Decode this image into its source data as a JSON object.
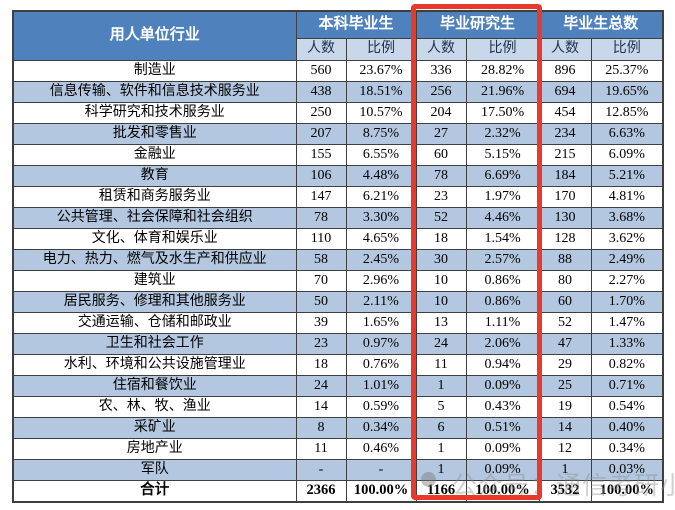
{
  "table": {
    "industry_header": "用人单位行业",
    "groups": [
      {
        "label": "本科毕业生"
      },
      {
        "label": "毕业研究生"
      },
      {
        "label": "毕业生总数"
      }
    ],
    "sub_headers": {
      "num": "人数",
      "pct": "比例"
    },
    "rows": [
      [
        "制造业",
        "560",
        "23.67%",
        "336",
        "28.82%",
        "896",
        "25.37%"
      ],
      [
        "信息传输、软件和信息技术服务业",
        "438",
        "18.51%",
        "256",
        "21.96%",
        "694",
        "19.65%"
      ],
      [
        "科学研究和技术服务业",
        "250",
        "10.57%",
        "204",
        "17.50%",
        "454",
        "12.85%"
      ],
      [
        "批发和零售业",
        "207",
        "8.75%",
        "27",
        "2.32%",
        "234",
        "6.63%"
      ],
      [
        "金融业",
        "155",
        "6.55%",
        "60",
        "5.15%",
        "215",
        "6.09%"
      ],
      [
        "教育",
        "106",
        "4.48%",
        "78",
        "6.69%",
        "184",
        "5.21%"
      ],
      [
        "租赁和商务服务业",
        "147",
        "6.21%",
        "23",
        "1.97%",
        "170",
        "4.81%"
      ],
      [
        "公共管理、社会保障和社会组织",
        "78",
        "3.30%",
        "52",
        "4.46%",
        "130",
        "3.68%"
      ],
      [
        "文化、体育和娱乐业",
        "110",
        "4.65%",
        "18",
        "1.54%",
        "128",
        "3.62%"
      ],
      [
        "电力、热力、燃气及水生产和供应业",
        "58",
        "2.45%",
        "30",
        "2.57%",
        "88",
        "2.49%"
      ],
      [
        "建筑业",
        "70",
        "2.96%",
        "10",
        "0.86%",
        "80",
        "2.27%"
      ],
      [
        "居民服务、修理和其他服务业",
        "50",
        "2.11%",
        "10",
        "0.86%",
        "60",
        "1.70%"
      ],
      [
        "交通运输、仓储和邮政业",
        "39",
        "1.65%",
        "13",
        "1.11%",
        "52",
        "1.47%"
      ],
      [
        "卫生和社会工作",
        "23",
        "0.97%",
        "24",
        "2.06%",
        "47",
        "1.33%"
      ],
      [
        "水利、环境和公共设施管理业",
        "18",
        "0.76%",
        "11",
        "0.94%",
        "29",
        "0.82%"
      ],
      [
        "住宿和餐饮业",
        "24",
        "1.01%",
        "1",
        "0.09%",
        "25",
        "0.71%"
      ],
      [
        "农、林、牧、渔业",
        "14",
        "0.59%",
        "5",
        "0.43%",
        "19",
        "0.54%"
      ],
      [
        "采矿业",
        "8",
        "0.34%",
        "6",
        "0.51%",
        "14",
        "0.40%"
      ],
      [
        "房地产业",
        "11",
        "0.46%",
        "1",
        "0.09%",
        "12",
        "0.34%"
      ],
      [
        "军队",
        "-",
        "-",
        "1",
        "0.09%",
        "1",
        "0.03%"
      ]
    ],
    "total_row": [
      "合计",
      "2366",
      "100.00%",
      "1166",
      "100.00%",
      "3532",
      "100.00%"
    ]
  },
  "highlight": {
    "target_group": "毕业研究生",
    "color": "#e8392d"
  },
  "watermark": {
    "text": "公众号：通信考研小马哥"
  },
  "colors": {
    "header_bg": "#4f81bd",
    "header_text": "#ffffff",
    "subheader_bg": "#c9d7ea",
    "subheader_text": "#1f3050",
    "alt_row_bg": "#b4c7e0",
    "border": "#3f3f3f",
    "highlight_red": "#e8392d"
  }
}
